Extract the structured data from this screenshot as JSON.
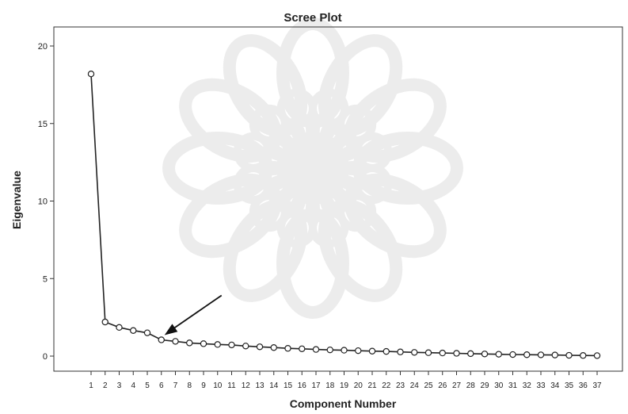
{
  "chart_data": {
    "type": "line",
    "title": "Scree Plot",
    "xlabel": "Component Number",
    "ylabel": "Eigenvalue",
    "ylim": [
      -1,
      20.5
    ],
    "yticks": [
      0,
      5,
      10,
      15,
      20
    ],
    "grid": false,
    "marker": "open-circle",
    "x": [
      1,
      2,
      3,
      4,
      5,
      6,
      7,
      8,
      9,
      10,
      11,
      12,
      13,
      14,
      15,
      16,
      17,
      18,
      19,
      20,
      21,
      22,
      23,
      24,
      25,
      26,
      27,
      28,
      29,
      30,
      31,
      32,
      33,
      34,
      35,
      36,
      37
    ],
    "series": [
      {
        "name": "",
        "values": [
          18.2,
          2.2,
          1.85,
          1.65,
          1.5,
          1.05,
          0.95,
          0.85,
          0.8,
          0.75,
          0.72,
          0.65,
          0.6,
          0.55,
          0.5,
          0.47,
          0.43,
          0.4,
          0.38,
          0.35,
          0.32,
          0.3,
          0.27,
          0.24,
          0.22,
          0.2,
          0.18,
          0.16,
          0.14,
          0.12,
          0.1,
          0.09,
          0.08,
          0.07,
          0.05,
          0.04,
          0.03
        ]
      }
    ],
    "annotation": {
      "type": "arrow",
      "points_to_component": 6
    }
  },
  "colors": {
    "line": "#222222",
    "marker_fill": "#ffffff",
    "axis": "#333333",
    "watermark": "#d6d6d6"
  },
  "icons": {
    "watermark": "rosette-watermark-icon"
  }
}
